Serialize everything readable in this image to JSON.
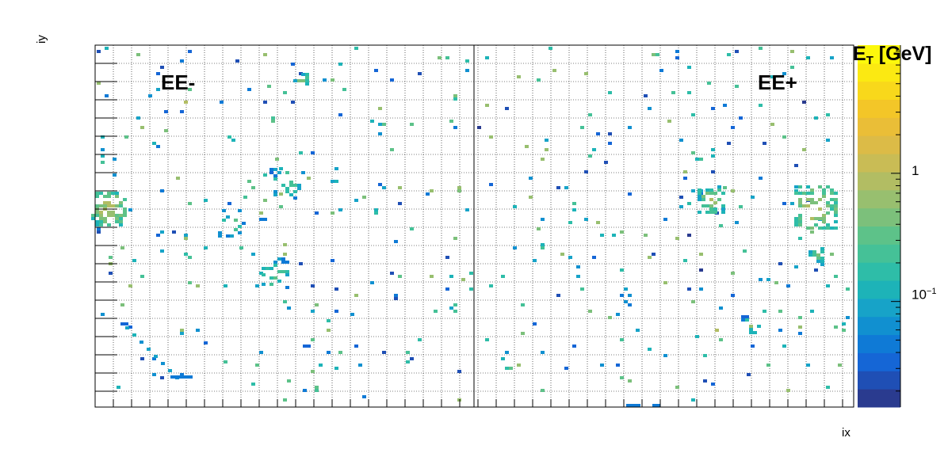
{
  "chart_data": {
    "type": "heatmap",
    "panels": [
      {
        "name": "EE-"
      },
      {
        "name": "EE+"
      }
    ],
    "xlabel": "ix",
    "ylabel": "iy",
    "colorbar": {
      "title_main": "E",
      "title_sub": "T",
      "title_unit": " [GeV]",
      "scale": "log",
      "ticks": [
        {
          "value": 0.1,
          "label_base": "10",
          "label_exp": "−1"
        },
        {
          "value": 1,
          "label_base": "1",
          "label_exp": ""
        }
      ],
      "palette": [
        "#2a3b8f",
        "#1f4fb5",
        "#1566d6",
        "#0f7ad6",
        "#1190d0",
        "#17a3c8",
        "#1db3b8",
        "#2ebda8",
        "#45c197",
        "#5dc289",
        "#7cc07b",
        "#98bf6f",
        "#b2bd63",
        "#c9bc55",
        "#dcbb47",
        "#eabe37",
        "#f3c628",
        "#f8d81b",
        "#fbe912",
        "#fcf80c"
      ]
    },
    "hotspots": [
      {
        "panel": "EE-",
        "value": 0.5
      },
      {
        "panel": "EE+",
        "value": 0.5
      },
      {
        "panel": "EE+",
        "value": 0.8
      }
    ]
  }
}
